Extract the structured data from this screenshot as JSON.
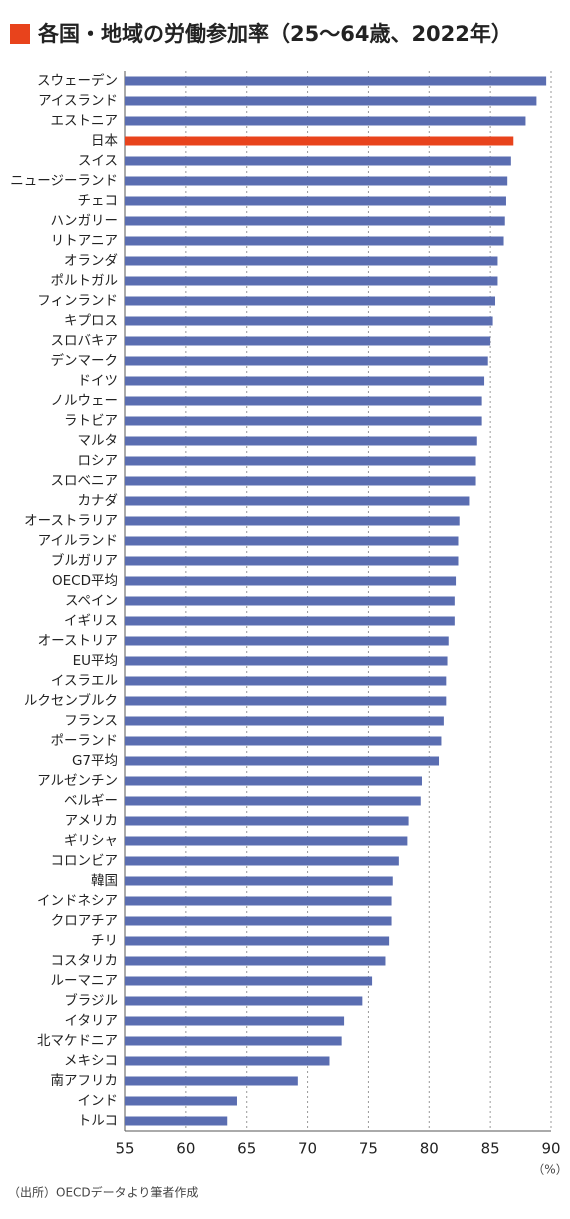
{
  "chart_data": {
    "type": "bar",
    "orientation": "horizontal",
    "title": "各国・地域の労働参加率（25～64歳、2022年）",
    "categories": [
      "スウェーデン",
      "アイスランド",
      "エストニア",
      "日本",
      "スイス",
      "ニュージーランド",
      "チェコ",
      "ハンガリー",
      "リトアニア",
      "オランダ",
      "ポルトガル",
      "フィンランド",
      "キプロス",
      "スロバキア",
      "デンマーク",
      "ドイツ",
      "ノルウェー",
      "ラトビア",
      "マルタ",
      "ロシア",
      "スロベニア",
      "カナダ",
      "オーストラリア",
      "アイルランド",
      "ブルガリア",
      "OECD平均",
      "スペイン",
      "イギリス",
      "オーストリア",
      "EU平均",
      "イスラエル",
      "ルクセンブルク",
      "フランス",
      "ポーランド",
      "G7平均",
      "アルゼンチン",
      "ベルギー",
      "アメリカ",
      "ギリシャ",
      "コロンビア",
      "韓国",
      "インドネシア",
      "クロアチア",
      "チリ",
      "コスタリカ",
      "ルーマニア",
      "ブラジル",
      "イタリア",
      "北マケドニア",
      "メキシコ",
      "南アフリカ",
      "インド",
      "トルコ"
    ],
    "values": [
      89.6,
      88.8,
      87.9,
      86.9,
      86.7,
      86.4,
      86.3,
      86.2,
      86.1,
      85.6,
      85.6,
      85.4,
      85.2,
      85.0,
      84.8,
      84.5,
      84.3,
      84.3,
      83.9,
      83.8,
      83.8,
      83.3,
      82.5,
      82.4,
      82.4,
      82.2,
      82.1,
      82.1,
      81.6,
      81.5,
      81.4,
      81.4,
      81.2,
      81.0,
      80.8,
      79.4,
      79.3,
      78.3,
      78.2,
      77.5,
      77.0,
      76.9,
      76.9,
      76.7,
      76.4,
      75.3,
      74.5,
      73.0,
      72.8,
      71.8,
      69.2,
      64.2,
      63.4
    ],
    "color": "#5a6db1",
    "highlight_color": "#e8431c",
    "highlight_index": 3,
    "xlim": [
      55,
      90
    ],
    "xticks": [
      55,
      60,
      65,
      70,
      75,
      80,
      85,
      90
    ],
    "grid": true,
    "x_unit": "（%）",
    "source": "（出所）OECDデータより筆者作成"
  }
}
